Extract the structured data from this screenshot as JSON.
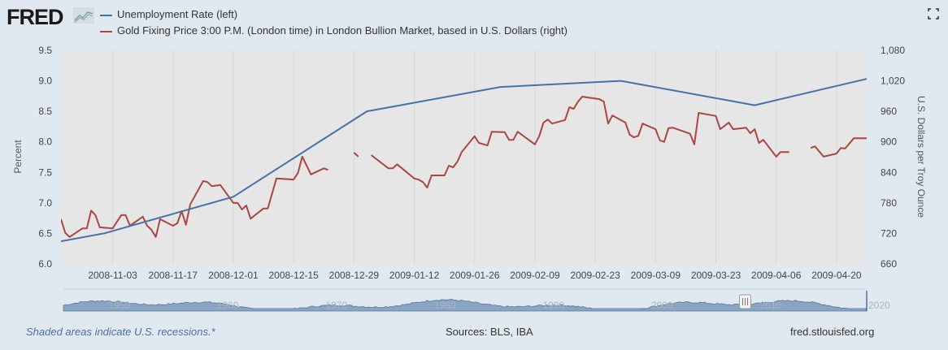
{
  "header": {
    "logo": "FRED",
    "legend": [
      {
        "label": "Unemployment Rate (left)",
        "color": "#4572a7"
      },
      {
        "label": "Gold Fixing Price 3:00 P.M. (London time) in London Bullion Market, based in U.S. Dollars (right)",
        "color": "#aa4643"
      }
    ],
    "fullscreen_icon": "fullscreen-icon"
  },
  "chart_data": {
    "type": "line",
    "plot_background": "#e6e6e6",
    "grid": "vertical",
    "xlim": [
      "2008-10-22",
      "2009-04-27"
    ],
    "x_ticks": [
      "2008-11-03",
      "2008-11-17",
      "2008-12-01",
      "2008-12-15",
      "2008-12-29",
      "2009-01-12",
      "2009-01-26",
      "2009-02-09",
      "2009-02-23",
      "2009-03-09",
      "2009-03-23",
      "2009-04-06",
      "2009-04-20"
    ],
    "y_left": {
      "label": "Percent",
      "lim": [
        6.0,
        9.5
      ],
      "ticks": [
        "6.0",
        "6.5",
        "7.0",
        "7.5",
        "8.0",
        "8.5",
        "9.0",
        "9.5"
      ]
    },
    "y_right": {
      "label": "U.S. Dollars per Troy Ounce",
      "lim": [
        660,
        1080
      ],
      "ticks": [
        "660",
        "720",
        "780",
        "840",
        "900",
        "960",
        "1,020",
        "1,080"
      ]
    },
    "series": [
      {
        "name": "Unemployment Rate (left)",
        "axis": "left",
        "color": "#4572a7",
        "points": [
          [
            "2008-10-01",
            6.1
          ],
          [
            "2008-11-01",
            6.5
          ],
          [
            "2008-12-01",
            7.1
          ],
          [
            "2009-01-01",
            8.5
          ],
          [
            "2009-02-01",
            8.9
          ],
          [
            "2009-03-01",
            9.0
          ],
          [
            "2009-04-01",
            8.6
          ],
          [
            "2009-05-01",
            9.1
          ]
        ]
      },
      {
        "name": "Gold Fixing Price 3:00 P.M. (London time) in London Bullion Market, based in U.S. Dollars (right)",
        "axis": "right",
        "color": "#aa4643",
        "points": [
          [
            "2008-10-22",
            748
          ],
          [
            "2008-10-23",
            721
          ],
          [
            "2008-10-24",
            713
          ],
          [
            "2008-10-27",
            730
          ],
          [
            "2008-10-28",
            730
          ],
          [
            "2008-10-29",
            765
          ],
          [
            "2008-10-30",
            756
          ],
          [
            "2008-10-31",
            732
          ],
          [
            "2008-11-03",
            730
          ],
          [
            "2008-11-05",
            756
          ],
          [
            "2008-11-06",
            756
          ],
          [
            "2008-11-07",
            735
          ],
          [
            "2008-11-10",
            753
          ],
          [
            "2008-11-11",
            735
          ],
          [
            "2008-11-12",
            727
          ],
          [
            "2008-11-13",
            713
          ],
          [
            "2008-11-14",
            748
          ],
          [
            "2008-11-17",
            735
          ],
          [
            "2008-11-18",
            740
          ],
          [
            "2008-11-19",
            764
          ],
          [
            "2008-11-20",
            737
          ],
          [
            "2008-11-21",
            777
          ],
          [
            "2008-11-24",
            823
          ],
          [
            "2008-11-25",
            821
          ],
          [
            "2008-11-26",
            813
          ],
          [
            "2008-11-28",
            815
          ],
          [
            "2008-12-01",
            780
          ],
          [
            "2008-12-02",
            780
          ],
          [
            "2008-12-03",
            767
          ],
          [
            "2008-12-04",
            775
          ],
          [
            "2008-12-05",
            749
          ],
          [
            "2008-12-08",
            769
          ],
          [
            "2008-12-09",
            769
          ],
          [
            "2008-12-11",
            828
          ],
          [
            "2008-12-15",
            826
          ],
          [
            "2008-12-16",
            839
          ],
          [
            "2008-12-17",
            871
          ],
          [
            "2008-12-19",
            836
          ],
          [
            "2008-12-22",
            848
          ],
          [
            "2008-12-23",
            845
          ],
          [
            "2008-12-24",
            null
          ],
          [
            "2008-12-29",
            879
          ],
          [
            "2008-12-30",
            871
          ],
          [
            "2008-12-31",
            null
          ],
          [
            "2009-01-02",
            874
          ],
          [
            "2009-01-06",
            848
          ],
          [
            "2009-01-07",
            848
          ],
          [
            "2009-01-08",
            856
          ],
          [
            "2009-01-12",
            828
          ],
          [
            "2009-01-13",
            826
          ],
          [
            "2009-01-14",
            821
          ],
          [
            "2009-01-15",
            810
          ],
          [
            "2009-01-16",
            834
          ],
          [
            "2009-01-19",
            834
          ],
          [
            "2009-01-20",
            853
          ],
          [
            "2009-01-21",
            850
          ],
          [
            "2009-01-22",
            861
          ],
          [
            "2009-01-23",
            880
          ],
          [
            "2009-01-26",
            911
          ],
          [
            "2009-01-27",
            898
          ],
          [
            "2009-01-29",
            893
          ],
          [
            "2009-01-30",
            920
          ],
          [
            "2009-02-02",
            919
          ],
          [
            "2009-02-03",
            904
          ],
          [
            "2009-02-04",
            904
          ],
          [
            "2009-02-05",
            920
          ],
          [
            "2009-02-09",
            895
          ],
          [
            "2009-02-10",
            911
          ],
          [
            "2009-02-11",
            938
          ],
          [
            "2009-02-12",
            944
          ],
          [
            "2009-02-13",
            936
          ],
          [
            "2009-02-16",
            943
          ],
          [
            "2009-02-17",
            968
          ],
          [
            "2009-02-18",
            965
          ],
          [
            "2009-02-19",
            979
          ],
          [
            "2009-02-20",
            989
          ],
          [
            "2009-02-24",
            984
          ],
          [
            "2009-02-25",
            979
          ],
          [
            "2009-02-26",
            936
          ],
          [
            "2009-02-27",
            952
          ],
          [
            "2009-03-02",
            938
          ],
          [
            "2009-03-03",
            914
          ],
          [
            "2009-03-04",
            909
          ],
          [
            "2009-03-05",
            912
          ],
          [
            "2009-03-06",
            936
          ],
          [
            "2009-03-09",
            925
          ],
          [
            "2009-03-10",
            903
          ],
          [
            "2009-03-11",
            900
          ],
          [
            "2009-03-12",
            927
          ],
          [
            "2009-03-13",
            928
          ],
          [
            "2009-03-17",
            916
          ],
          [
            "2009-03-18",
            895
          ],
          [
            "2009-03-19",
            957
          ],
          [
            "2009-03-23",
            951
          ],
          [
            "2009-03-24",
            925
          ],
          [
            "2009-03-26",
            938
          ],
          [
            "2009-03-27",
            925
          ],
          [
            "2009-03-30",
            928
          ],
          [
            "2009-03-31",
            917
          ],
          [
            "2009-04-01",
            925
          ],
          [
            "2009-04-02",
            898
          ],
          [
            "2009-04-03",
            904
          ],
          [
            "2009-04-06",
            871
          ],
          [
            "2009-04-07",
            880
          ],
          [
            "2009-04-09",
            880
          ],
          [
            "2009-04-10",
            null
          ],
          [
            "2009-04-14",
            888
          ],
          [
            "2009-04-15",
            891
          ],
          [
            "2009-04-17",
            871
          ],
          [
            "2009-04-20",
            877
          ],
          [
            "2009-04-21",
            888
          ],
          [
            "2009-04-22",
            887
          ],
          [
            "2009-04-24",
            907
          ],
          [
            "2009-04-27",
            907
          ]
        ]
      }
    ],
    "navigator": {
      "labels": [
        "1950",
        "1960",
        "1970",
        "1980",
        "1990",
        "2000",
        "2010",
        "2020"
      ],
      "range_start": 1946,
      "range_end": 2020,
      "selected": [
        "2008-10-22",
        "2009-04-27"
      ]
    }
  },
  "footer": {
    "recession_note": "Shaded areas indicate U.S. recessions.*",
    "sources": "Sources: BLS, IBA",
    "site": "fred.stlouisfed.org"
  }
}
